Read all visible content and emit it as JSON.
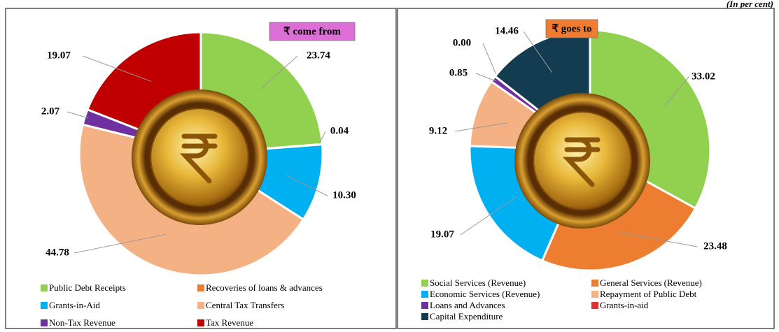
{
  "unit_note": "(In per cent)",
  "chart_data": [
    {
      "type": "pie",
      "title": "₹ come from",
      "categories": [
        "Public Debt Receipts",
        "Recoveries of loans & advances",
        "Grants-in-Aid",
        "Central Tax Transfers",
        "Non-Tax Revenue",
        "Tax Revenue"
      ],
      "values": [
        23.74,
        0.04,
        10.3,
        44.78,
        2.07,
        19.07
      ],
      "value_labels": [
        "23.74",
        "0.04",
        "10.30",
        "44.78",
        "2.07",
        "19.07"
      ],
      "colors": [
        "#92d050",
        "#ed7d31",
        "#00b0f0",
        "#f4b183",
        "#7030a0",
        "#c00000"
      ]
    },
    {
      "type": "pie",
      "title": "₹ goes to",
      "categories": [
        "Social Services (Revenue)",
        "General Services (Revenue)",
        "Economic Services (Revenue)",
        "Repayment of Public Debt",
        "Loans and Advances",
        "Grants-in-aid",
        "Capital Expenditure"
      ],
      "values": [
        33.02,
        23.48,
        19.07,
        9.12,
        0.85,
        0.0,
        14.46
      ],
      "value_labels": [
        "33.02",
        "23.48",
        "19.07",
        "9.12",
        "0.85",
        "0.00",
        "14.46"
      ],
      "colors": [
        "#92d050",
        "#ed7d31",
        "#00b0f0",
        "#f4b183",
        "#7030a0",
        "#e03030",
        "#143c50"
      ]
    }
  ]
}
